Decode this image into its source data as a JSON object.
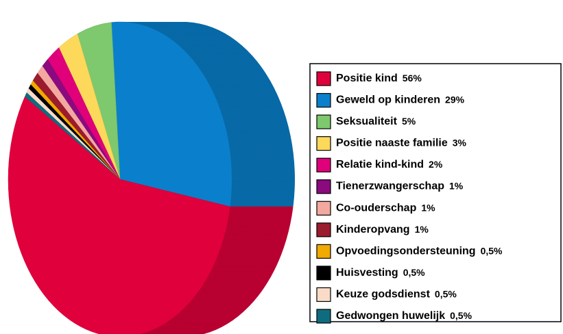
{
  "chart_data": {
    "type": "pie",
    "categories": [
      "Positie kind",
      "Geweld op kinderen",
      "Seksualiteit",
      "Positie naaste familie",
      "Relatie kind-kind",
      "Tienerzwangerschap",
      "Co-ouderschap",
      "Kinderopvang",
      "Opvoedingsondersteuning",
      "Huisvesting",
      "Keuze godsdienst",
      "Gedwongen huwelijk"
    ],
    "values": [
      56,
      29,
      5,
      3,
      2,
      1,
      1,
      1,
      0.5,
      0.5,
      0.5,
      0.5
    ],
    "value_labels": [
      "56%",
      "29%",
      "5%",
      "3%",
      "2%",
      "1%",
      "1%",
      "1%",
      "0,5%",
      "0,5%",
      "0,5%",
      "0,5%"
    ],
    "colors": [
      "#e0003c",
      "#0a80cc",
      "#7ec86e",
      "#fcd95a",
      "#e0007a",
      "#8b0a7f",
      "#f4a9a0",
      "#9b1c2e",
      "#f2a900",
      "#000000",
      "#fadbc8",
      "#0f6c7e"
    ],
    "legend": "right"
  }
}
